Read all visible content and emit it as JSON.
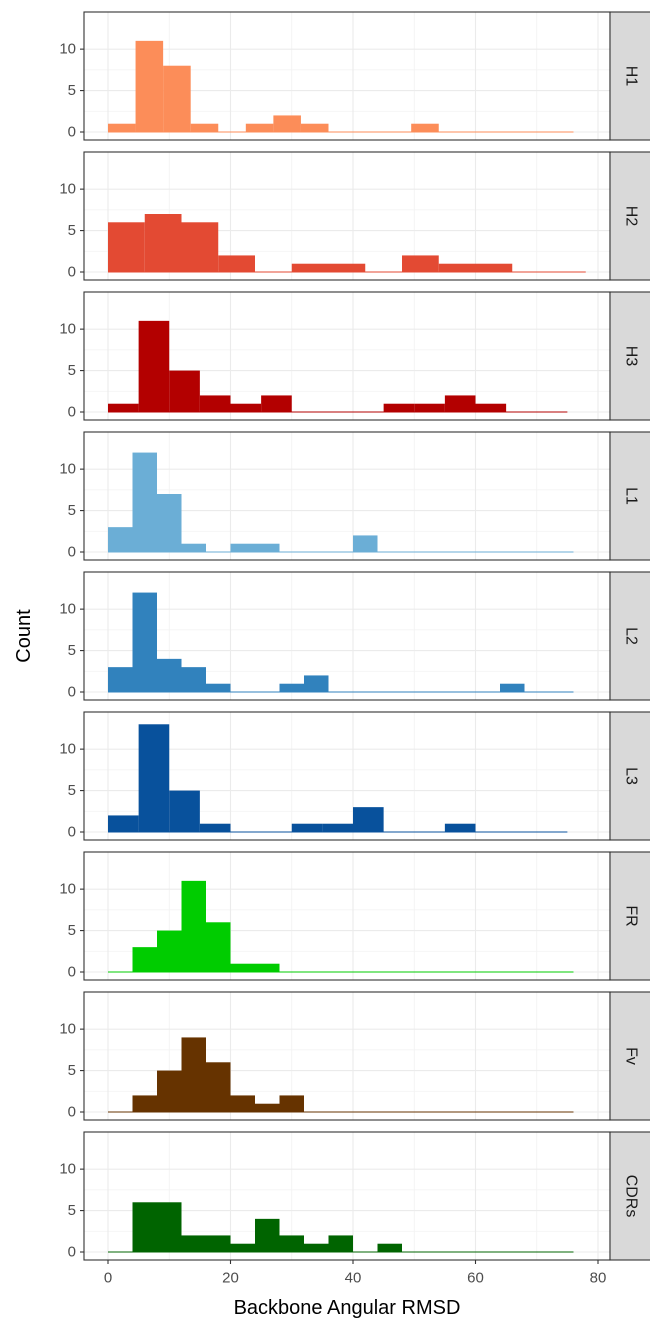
{
  "chart_data": {
    "type": "bar",
    "xlabel": "Backbone Angular RMSD",
    "ylabel": "Count",
    "xlim": [
      -4,
      82
    ],
    "ylim": [
      0,
      14
    ],
    "x_ticks": [
      0,
      20,
      40,
      60,
      80
    ],
    "y_ticks": [
      0,
      5,
      10
    ],
    "grid": true,
    "panels": [
      {
        "label": "H1",
        "color": "#fc8d59",
        "line_end": 76,
        "bins": [
          [
            0,
            4.5,
            1
          ],
          [
            4.5,
            9,
            11
          ],
          [
            9,
            13.5,
            8
          ],
          [
            13.5,
            18,
            1
          ],
          [
            22.5,
            27,
            1
          ],
          [
            27,
            31.5,
            2
          ],
          [
            31.5,
            36,
            1
          ],
          [
            49.5,
            54,
            1
          ]
        ]
      },
      {
        "label": "H2",
        "color": "#e34a33",
        "line_end": 78,
        "bins": [
          [
            0,
            6,
            6
          ],
          [
            6,
            12,
            7
          ],
          [
            12,
            18,
            6
          ],
          [
            18,
            24,
            2
          ],
          [
            30,
            36,
            1
          ],
          [
            36,
            42,
            1
          ],
          [
            48,
            54,
            2
          ],
          [
            54,
            60,
            1
          ],
          [
            60,
            66,
            1
          ]
        ]
      },
      {
        "label": "H3",
        "color": "#b30000",
        "line_end": 75,
        "bins": [
          [
            0,
            5,
            1
          ],
          [
            5,
            10,
            11
          ],
          [
            10,
            15,
            5
          ],
          [
            15,
            20,
            2
          ],
          [
            20,
            25,
            1
          ],
          [
            25,
            30,
            2
          ],
          [
            45,
            50,
            1
          ],
          [
            50,
            55,
            1
          ],
          [
            55,
            60,
            2
          ],
          [
            60,
            65,
            1
          ]
        ]
      },
      {
        "label": "L1",
        "color": "#6baed6",
        "line_end": 76,
        "bins": [
          [
            0,
            4,
            3
          ],
          [
            4,
            8,
            12
          ],
          [
            8,
            12,
            7
          ],
          [
            12,
            16,
            1
          ],
          [
            20,
            24,
            1
          ],
          [
            24,
            28,
            1
          ],
          [
            40,
            44,
            2
          ]
        ]
      },
      {
        "label": "L2",
        "color": "#3182bd",
        "line_end": 76,
        "bins": [
          [
            0,
            4,
            3
          ],
          [
            4,
            8,
            12
          ],
          [
            8,
            12,
            4
          ],
          [
            12,
            16,
            3
          ],
          [
            16,
            20,
            1
          ],
          [
            28,
            32,
            1
          ],
          [
            32,
            36,
            2
          ],
          [
            64,
            68,
            1
          ]
        ]
      },
      {
        "label": "L3",
        "color": "#08519c",
        "line_end": 75,
        "bins": [
          [
            0,
            5,
            2
          ],
          [
            5,
            10,
            13
          ],
          [
            10,
            15,
            5
          ],
          [
            15,
            20,
            1
          ],
          [
            30,
            35,
            1
          ],
          [
            35,
            40,
            1
          ],
          [
            40,
            45,
            3
          ],
          [
            55,
            60,
            1
          ]
        ]
      },
      {
        "label": "FR",
        "color": "#00cc00",
        "line_end": 76,
        "bins": [
          [
            4,
            8,
            3
          ],
          [
            8,
            12,
            5
          ],
          [
            12,
            16,
            11
          ],
          [
            16,
            20,
            6
          ],
          [
            20,
            24,
            1
          ],
          [
            24,
            28,
            1
          ]
        ]
      },
      {
        "label": "Fv",
        "color": "#663300",
        "line_end": 76,
        "bins": [
          [
            4,
            8,
            2
          ],
          [
            8,
            12,
            5
          ],
          [
            12,
            16,
            9
          ],
          [
            16,
            20,
            6
          ],
          [
            20,
            24,
            2
          ],
          [
            24,
            28,
            1
          ],
          [
            28,
            32,
            2
          ]
        ]
      },
      {
        "label": "CDRs",
        "color": "#006400",
        "line_end": 76,
        "bins": [
          [
            4,
            8,
            6
          ],
          [
            8,
            12,
            6
          ],
          [
            12,
            16,
            2
          ],
          [
            16,
            20,
            2
          ],
          [
            20,
            24,
            1
          ],
          [
            24,
            28,
            4
          ],
          [
            28,
            32,
            2
          ],
          [
            32,
            36,
            1
          ],
          [
            36,
            40,
            2
          ],
          [
            44,
            48,
            1
          ]
        ]
      }
    ]
  }
}
